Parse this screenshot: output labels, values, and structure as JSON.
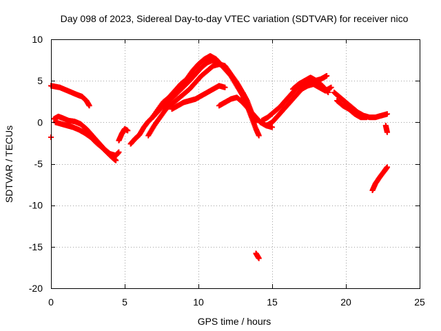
{
  "chart_data": {
    "type": "scatter",
    "title": "Day 098 of 2023, Sidereal Day-to-day VTEC variation (SDTVAR) for receiver nico",
    "xlabel": "GPS time / hours",
    "ylabel": "SDTVAR / TECUs",
    "xlim": [
      0,
      25
    ],
    "ylim": [
      -20,
      10
    ],
    "xticks": [
      0,
      5,
      10,
      15,
      20,
      25
    ],
    "yticks": [
      -20,
      -15,
      -10,
      -5,
      0,
      5,
      10
    ],
    "xtick_labels": [
      "0",
      "5",
      "10",
      "15",
      "20",
      "25"
    ],
    "ytick_labels": [
      "-20",
      "-15",
      "-10",
      "-5",
      "0",
      "5",
      "10"
    ],
    "grid": true,
    "marker": "plus",
    "series_color": "#ff0000",
    "series": [
      {
        "name": "arc-1",
        "x": [
          0.0,
          0.3,
          0.6,
          1.0,
          1.4,
          1.8,
          2.1,
          2.4,
          2.6
        ],
        "y": [
          4.4,
          4.3,
          4.2,
          3.9,
          3.6,
          3.3,
          3.1,
          2.6,
          2.0
        ]
      },
      {
        "name": "arc-2",
        "x": [
          0.2,
          0.5,
          0.8,
          1.2,
          1.6,
          2.0,
          2.4,
          2.8,
          3.2,
          3.6,
          4.0,
          4.4,
          4.6
        ],
        "y": [
          0.4,
          0.7,
          0.5,
          0.2,
          0.1,
          -0.2,
          -0.8,
          -1.6,
          -2.4,
          -3.2,
          -3.8,
          -4.0,
          -3.6
        ]
      },
      {
        "name": "arc-3",
        "x": [
          0.3,
          0.7,
          1.1,
          1.5,
          1.9,
          2.3,
          2.7,
          3.1,
          3.5,
          3.9,
          4.2,
          4.4
        ],
        "y": [
          0.0,
          -0.2,
          -0.4,
          -0.6,
          -0.9,
          -1.3,
          -1.8,
          -2.5,
          -3.1,
          -3.8,
          -4.3,
          -4.6
        ]
      },
      {
        "name": "arc-4",
        "x": [
          0.0
        ],
        "y": [
          -1.8
        ]
      },
      {
        "name": "arc-5",
        "x": [
          4.6,
          4.8,
          5.0,
          5.2
        ],
        "y": [
          -2.2,
          -1.4,
          -0.8,
          -1.0
        ]
      },
      {
        "name": "arc-6",
        "x": [
          5.4,
          5.7,
          6.0,
          6.3,
          6.6,
          7.0,
          7.4,
          7.8,
          8.2,
          8.6,
          9.0,
          9.4,
          9.8,
          10.2,
          10.6,
          11.0,
          11.4,
          11.8,
          12.2,
          12.6,
          13.0,
          13.3,
          13.6,
          13.9,
          14.1
        ],
        "y": [
          -2.6,
          -2.0,
          -1.5,
          -0.6,
          0.1,
          0.8,
          1.6,
          2.2,
          2.9,
          3.6,
          4.3,
          5.0,
          5.8,
          6.6,
          7.2,
          7.5,
          7.2,
          6.4,
          5.6,
          4.4,
          3.2,
          2.0,
          0.6,
          -0.8,
          -1.6
        ]
      },
      {
        "name": "arc-7",
        "x": [
          6.6,
          7.0,
          7.4,
          7.8,
          8.2,
          8.6,
          9.0,
          9.4,
          9.8,
          10.2,
          10.6,
          11.0,
          11.4,
          11.8,
          12.2,
          12.6,
          13.0,
          13.3,
          13.6,
          13.9
        ],
        "y": [
          -1.6,
          -0.4,
          0.6,
          1.6,
          2.2,
          2.8,
          3.4,
          4.0,
          4.8,
          5.6,
          6.2,
          6.8,
          7.0,
          6.8,
          5.8,
          4.8,
          3.6,
          2.6,
          1.2,
          0.0
        ]
      },
      {
        "name": "arc-8",
        "x": [
          6.8,
          7.2,
          7.6,
          8.0,
          8.4,
          8.8,
          9.2,
          9.6,
          10.0,
          10.4,
          10.8,
          11.2,
          11.6,
          12.0
        ],
        "y": [
          0.4,
          1.4,
          2.4,
          3.0,
          3.8,
          4.6,
          5.2,
          6.2,
          7.0,
          7.6,
          8.0,
          7.6,
          6.8,
          6.2
        ]
      },
      {
        "name": "arc-9",
        "x": [
          8.2,
          8.6,
          9.0,
          9.4,
          9.8,
          10.2,
          10.6,
          11.0,
          11.4,
          11.8
        ],
        "y": [
          1.6,
          2.0,
          2.4,
          2.6,
          2.8,
          3.2,
          3.6,
          4.0,
          4.4,
          4.2
        ]
      },
      {
        "name": "arc-10",
        "x": [
          11.4,
          11.8,
          12.2,
          12.6,
          13.0,
          13.4,
          13.8,
          14.2,
          14.6,
          15.0
        ],
        "y": [
          2.0,
          2.4,
          2.8,
          3.0,
          2.4,
          1.6,
          0.8,
          0.0,
          -0.4,
          -0.6
        ]
      },
      {
        "name": "arc-11",
        "x": [
          13.9,
          14.1
        ],
        "y": [
          -15.8,
          -16.4
        ]
      },
      {
        "name": "arc-12",
        "x": [
          14.3,
          14.7,
          15.1,
          15.5,
          15.9,
          16.3,
          16.7,
          17.1,
          17.5,
          17.9,
          18.3,
          18.7
        ],
        "y": [
          0.2,
          0.6,
          1.2,
          1.8,
          2.6,
          3.4,
          4.2,
          4.6,
          4.8,
          5.0,
          5.2,
          5.6
        ]
      },
      {
        "name": "arc-13",
        "x": [
          14.6,
          15.0,
          15.4,
          15.8,
          16.2,
          16.6,
          17.0,
          17.4,
          17.8,
          18.2,
          18.6,
          19.0
        ],
        "y": [
          -0.4,
          0.0,
          0.8,
          1.6,
          2.4,
          3.2,
          4.0,
          4.4,
          4.6,
          4.2,
          3.8,
          4.2
        ]
      },
      {
        "name": "arc-14",
        "x": [
          16.4,
          16.8,
          17.2,
          17.6,
          18.0,
          18.4,
          18.8
        ],
        "y": [
          4.0,
          4.6,
          5.0,
          5.4,
          5.0,
          4.4,
          3.6
        ]
      },
      {
        "name": "arc-15",
        "x": [
          19.2,
          19.6,
          20.0,
          20.4,
          20.8,
          21.2,
          21.6,
          22.0,
          22.4,
          22.8
        ],
        "y": [
          3.6,
          3.0,
          2.4,
          1.8,
          1.2,
          0.8,
          0.6,
          0.6,
          0.8,
          1.0
        ]
      },
      {
        "name": "arc-16",
        "x": [
          19.4,
          19.8,
          20.2,
          20.6,
          21.0,
          21.4
        ],
        "y": [
          2.6,
          2.0,
          1.6,
          1.0,
          0.6,
          0.6
        ]
      },
      {
        "name": "arc-17",
        "x": [
          22.7,
          22.8
        ],
        "y": [
          -0.4,
          -1.2
        ]
      },
      {
        "name": "arc-18",
        "x": [
          21.8,
          22.0,
          22.3,
          22.6,
          22.8
        ],
        "y": [
          -8.2,
          -7.4,
          -6.6,
          -5.9,
          -5.4
        ]
      }
    ]
  }
}
